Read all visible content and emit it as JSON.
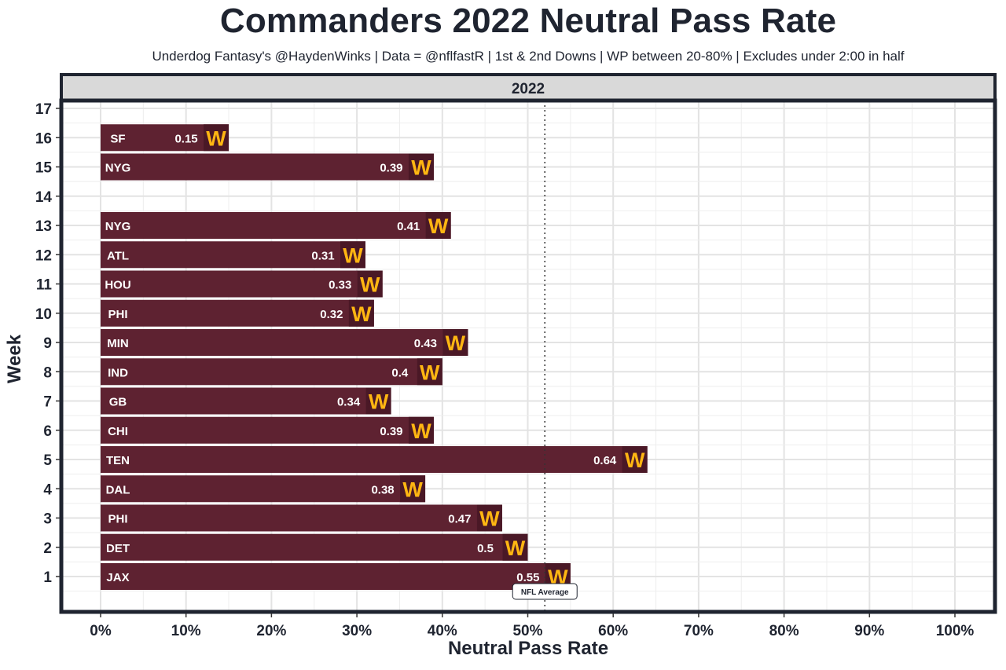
{
  "chart_data": {
    "type": "bar",
    "orientation": "horizontal",
    "title": "Commanders 2022 Neutral Pass Rate",
    "subtitle": "Underdog Fantasy's @HaydenWinks | Data = @nflfastR | 1st & 2nd Downs | WP between 20-80% | Excludes under 2:00 in half",
    "facet_label": "2022",
    "xlabel": "Neutral Pass Rate",
    "ylabel": "Week",
    "xlim": [
      0,
      1
    ],
    "ylim": [
      0,
      17
    ],
    "x_ticks": [
      "0%",
      "10%",
      "20%",
      "30%",
      "40%",
      "50%",
      "60%",
      "70%",
      "80%",
      "90%",
      "100%"
    ],
    "y_ticks": [
      "1",
      "2",
      "3",
      "4",
      "5",
      "6",
      "7",
      "8",
      "9",
      "10",
      "11",
      "12",
      "13",
      "14",
      "15",
      "16",
      "17"
    ],
    "reference_line": {
      "value": 0.52,
      "label": "NFL Average"
    },
    "bar_color": "#5e2231",
    "logo_color": "#ffb612",
    "logo_text": "W",
    "bars": [
      {
        "week": 1,
        "opponent": "JAX",
        "value": 0.55,
        "label": "0.55"
      },
      {
        "week": 2,
        "opponent": "DET",
        "value": 0.5,
        "label": "0.5"
      },
      {
        "week": 3,
        "opponent": "PHI",
        "value": 0.47,
        "label": "0.47"
      },
      {
        "week": 4,
        "opponent": "DAL",
        "value": 0.38,
        "label": "0.38"
      },
      {
        "week": 5,
        "opponent": "TEN",
        "value": 0.64,
        "label": "0.64"
      },
      {
        "week": 6,
        "opponent": "CHI",
        "value": 0.39,
        "label": "0.39"
      },
      {
        "week": 7,
        "opponent": "GB",
        "value": 0.34,
        "label": "0.34"
      },
      {
        "week": 8,
        "opponent": "IND",
        "value": 0.4,
        "label": "0.4"
      },
      {
        "week": 9,
        "opponent": "MIN",
        "value": 0.43,
        "label": "0.43"
      },
      {
        "week": 10,
        "opponent": "PHI",
        "value": 0.32,
        "label": "0.32"
      },
      {
        "week": 11,
        "opponent": "HOU",
        "value": 0.33,
        "label": "0.33"
      },
      {
        "week": 12,
        "opponent": "ATL",
        "value": 0.31,
        "label": "0.31"
      },
      {
        "week": 13,
        "opponent": "NYG",
        "value": 0.41,
        "label": "0.41"
      },
      {
        "week": 15,
        "opponent": "NYG",
        "value": 0.39,
        "label": "0.39"
      },
      {
        "week": 16,
        "opponent": "SF",
        "value": 0.15,
        "label": "0.15"
      }
    ]
  }
}
